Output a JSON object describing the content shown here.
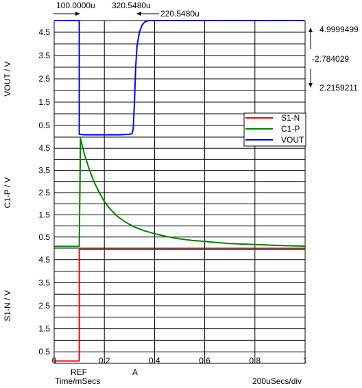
{
  "chart_data": {
    "type": "line",
    "x_unit_label": "Time/mSecs",
    "x_div_label": "200uSecs/div",
    "x_range": [
      0,
      1
    ],
    "x_ticks": [
      "0",
      "0.2",
      "0.4",
      "0.6",
      "0.8",
      "1"
    ],
    "cursor_labels": {
      "ref": "REF",
      "a": "A"
    },
    "cursors": {
      "ref_x": 0.1,
      "a_x": 0.320548
    },
    "measurements": {
      "ref_time": "100.0000u",
      "a_time": "320.5480u",
      "delta_time": "220.5480u",
      "value_top": "4.9999499",
      "value_delta": "-2.784029",
      "value_bottom": "2.2159211"
    },
    "legend": [
      {
        "name": "S1-N",
        "color": "#ff0000"
      },
      {
        "name": "C1-P",
        "color": "#008000"
      },
      {
        "name": "VOUT",
        "color": "#0000ff"
      }
    ],
    "panels": [
      {
        "ylabel": "VOUT / V",
        "color": "#0000ff",
        "y_ticks": [
          "0.5",
          "1.5",
          "2.5",
          "3.5",
          "4.5"
        ],
        "ylim": [
          0,
          5
        ],
        "x": [
          0,
          0.1,
          0.1,
          0.12,
          0.2,
          0.26,
          0.3,
          0.31,
          0.315,
          0.32,
          0.325,
          0.33,
          0.34,
          0.35,
          0.36,
          0.37,
          0.38,
          1
        ],
        "y": [
          5,
          5,
          0.12,
          0.1,
          0.1,
          0.1,
          0.12,
          0.15,
          0.35,
          1.5,
          3.0,
          3.9,
          4.5,
          4.8,
          4.93,
          4.98,
          5,
          5
        ]
      },
      {
        "ylabel": "C1-P / V",
        "color": "#008000",
        "y_ticks": [
          "0.5",
          "1.5",
          "2.5",
          "3.5",
          "4.5"
        ],
        "ylim": [
          0,
          5
        ],
        "x": [
          0,
          0.1,
          0.1,
          0.105,
          0.12,
          0.14,
          0.16,
          0.18,
          0.2,
          0.22,
          0.25,
          0.28,
          0.32,
          0.36,
          0.4,
          0.45,
          0.5,
          0.55,
          0.6,
          0.65,
          0.7,
          0.8,
          0.9,
          1
        ],
        "y": [
          0.08,
          0.08,
          0.08,
          4.95,
          4.25,
          3.55,
          2.95,
          2.5,
          2.1,
          1.8,
          1.45,
          1.2,
          0.95,
          0.78,
          0.65,
          0.52,
          0.42,
          0.35,
          0.3,
          0.25,
          0.21,
          0.16,
          0.12,
          0.09
        ]
      },
      {
        "ylabel": "S1-N / V",
        "color": "#ff0000",
        "y_ticks": [
          "0.5",
          "1.5",
          "2.5",
          "3.5",
          "4.5"
        ],
        "ylim": [
          0,
          5
        ],
        "x": [
          0,
          0.1,
          0.1,
          1
        ],
        "y": [
          0.1,
          0.1,
          4.95,
          4.95
        ]
      }
    ]
  }
}
